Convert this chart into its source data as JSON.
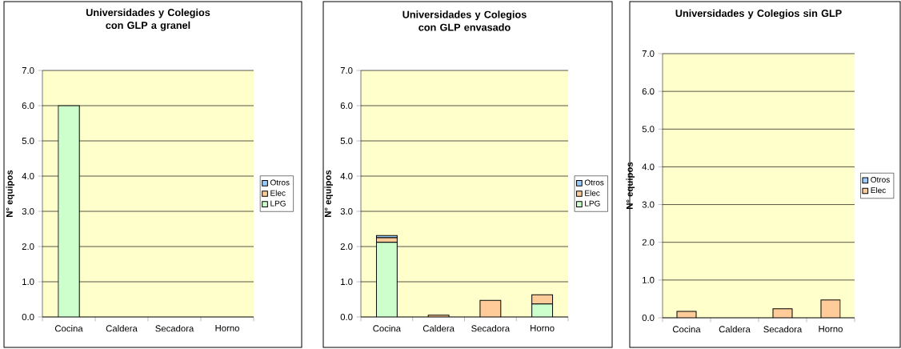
{
  "chart_data": [
    {
      "type": "bar",
      "title": "Universidades y Colegios con GLP  a granel",
      "ylabel": "N° equipos",
      "categories": [
        "Cocina",
        "Caldera",
        "Secadora",
        "Horno"
      ],
      "stacked": true,
      "ylim": [
        0,
        7
      ],
      "yticks": [
        {
          "value": 0,
          "label": "0.0"
        },
        {
          "value": 1,
          "label": "1.0"
        },
        {
          "value": 2,
          "label": "2.0"
        },
        {
          "value": 3,
          "label": "3.0"
        },
        {
          "value": 4,
          "label": "4.0"
        },
        {
          "value": 5,
          "label": "5.0"
        },
        {
          "value": 6,
          "label": "6.0"
        },
        {
          "value": 7,
          "label": "7.0"
        }
      ],
      "grid": "y",
      "legend": "right",
      "series": [
        {
          "name": "LPG",
          "color": "#ccffcc",
          "values": [
            6.0,
            0,
            0,
            0
          ]
        },
        {
          "name": "Elec",
          "color": "#ffcc99",
          "values": [
            0,
            0,
            0,
            0
          ]
        },
        {
          "name": "Otros",
          "color": "#99ccff",
          "values": [
            0,
            0,
            0,
            0
          ]
        }
      ]
    },
    {
      "type": "bar",
      "title": "Universidades y Colegios con GLP envasado",
      "ylabel": "N° equipos",
      "categories": [
        "Cocina",
        "Caldera",
        "Secadora",
        "Horno"
      ],
      "stacked": true,
      "ylim": [
        0,
        7
      ],
      "yticks": [
        {
          "value": 0,
          "label": "0.0"
        },
        {
          "value": 1,
          "label": "1.0"
        },
        {
          "value": 2,
          "label": "2.0"
        },
        {
          "value": 3,
          "label": "3.0"
        },
        {
          "value": 4,
          "label": "4.0"
        },
        {
          "value": 5,
          "label": "5.0"
        },
        {
          "value": 6,
          "label": "6.0"
        },
        {
          "value": 7,
          "label": "7.0"
        }
      ],
      "grid": "y",
      "legend": "right",
      "series": [
        {
          "name": "LPG",
          "color": "#ccffcc",
          "values": [
            2.12,
            0,
            0,
            0.37
          ]
        },
        {
          "name": "Elec",
          "color": "#ffcc99",
          "values": [
            0.13,
            0.05,
            0.47,
            0.26
          ]
        },
        {
          "name": "Otros",
          "color": "#99ccff",
          "values": [
            0.06,
            null,
            0,
            0
          ]
        }
      ]
    },
    {
      "type": "bar",
      "title": "Universidades y Colegios sin GLP",
      "ylabel": "N° equipos",
      "categories": [
        "Cocina",
        "Caldera",
        "Secadora",
        "Horno"
      ],
      "stacked": true,
      "ylim": [
        0,
        7
      ],
      "yticks": [
        {
          "value": 0,
          "label": "0.0"
        },
        {
          "value": 1,
          "label": "1.0"
        },
        {
          "value": 2,
          "label": "2.0"
        },
        {
          "value": 3,
          "label": "3.0"
        },
        {
          "value": 4,
          "label": "4.0"
        },
        {
          "value": 5,
          "label": "5.0"
        },
        {
          "value": 6,
          "label": "6.0"
        },
        {
          "value": 7,
          "label": "7.0"
        }
      ],
      "grid": "y",
      "legend": "right",
      "series": [
        {
          "name": "Elec",
          "color": "#ffcc99",
          "values": [
            0.17,
            0,
            0.24,
            0.47
          ]
        },
        {
          "name": "Otros",
          "color": "#99ccff",
          "values": [
            0,
            0,
            0,
            0
          ]
        }
      ]
    }
  ]
}
